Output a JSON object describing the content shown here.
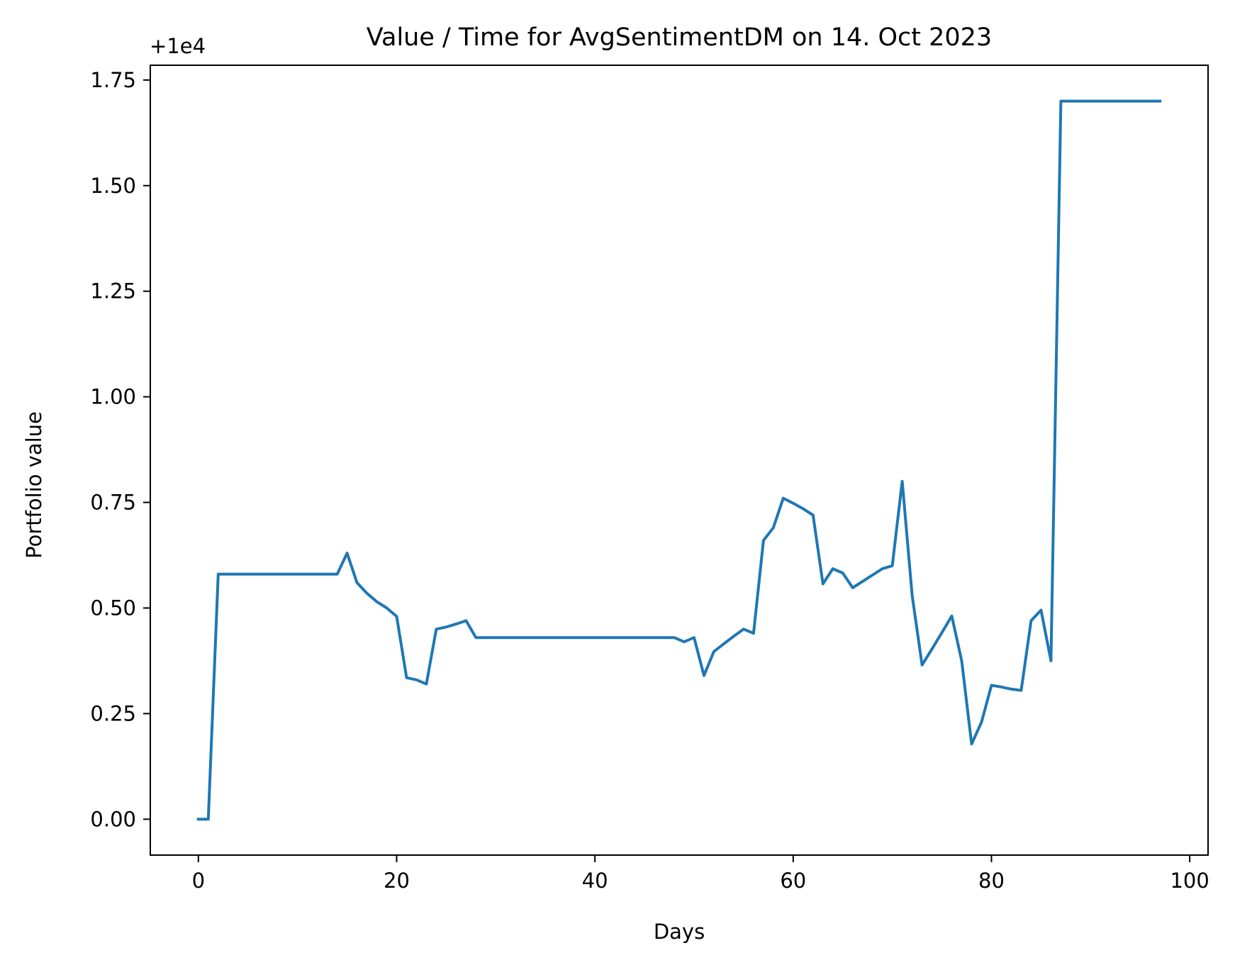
{
  "chart_data": {
    "type": "line",
    "title": "Value / Time for AvgSentimentDM on 14. Oct 2023",
    "xlabel": "Days",
    "ylabel": "Portfolio value",
    "y_offset_label": "+1e4",
    "xlim": [
      -4.85,
      101.85
    ],
    "ylim": [
      -0.085,
      1.785
    ],
    "xticks": [
      0,
      20,
      40,
      60,
      80,
      100
    ],
    "xtick_labels": [
      "0",
      "20",
      "40",
      "60",
      "80",
      "100"
    ],
    "yticks": [
      0.0,
      0.25,
      0.5,
      0.75,
      1.0,
      1.25,
      1.5,
      1.75
    ],
    "ytick_labels": [
      "0.00",
      "0.25",
      "0.50",
      "0.75",
      "1.00",
      "1.25",
      "1.50",
      "1.75"
    ],
    "grid": false,
    "line_color": "#1f77b4",
    "series": [
      {
        "x": [
          0,
          1,
          2,
          3,
          4,
          5,
          6,
          7,
          8,
          9,
          10,
          11,
          12,
          13,
          14,
          15,
          16,
          17,
          18,
          19,
          20,
          21,
          22,
          23,
          24,
          25,
          26,
          27,
          28,
          29,
          30,
          31,
          32,
          33,
          34,
          35,
          36,
          37,
          38,
          39,
          40,
          41,
          42,
          43,
          44,
          45,
          46,
          47,
          48,
          49,
          50,
          51,
          52,
          53,
          54,
          55,
          56,
          57,
          58,
          59,
          60,
          61,
          62,
          63,
          64,
          65,
          66,
          67,
          68,
          69,
          70,
          71,
          72,
          73,
          74,
          75,
          76,
          77,
          78,
          79,
          80,
          81,
          82,
          83,
          84,
          85,
          86,
          87,
          88,
          89,
          90,
          91,
          92,
          93,
          94,
          95,
          96,
          97
        ],
        "y": [
          0.0,
          0.0,
          0.58,
          0.58,
          0.58,
          0.58,
          0.58,
          0.58,
          0.58,
          0.58,
          0.58,
          0.58,
          0.58,
          0.58,
          0.58,
          0.63,
          0.56,
          0.535,
          0.515,
          0.5,
          0.48,
          0.335,
          0.33,
          0.32,
          0.45,
          0.455,
          0.462,
          0.47,
          0.43,
          0.43,
          0.43,
          0.43,
          0.43,
          0.43,
          0.43,
          0.43,
          0.43,
          0.43,
          0.43,
          0.43,
          0.43,
          0.43,
          0.43,
          0.43,
          0.43,
          0.43,
          0.43,
          0.43,
          0.43,
          0.42,
          0.43,
          0.34,
          0.397,
          0.415,
          0.433,
          0.45,
          0.44,
          0.66,
          0.69,
          0.76,
          0.748,
          0.735,
          0.72,
          0.557,
          0.593,
          0.583,
          0.548,
          0.563,
          0.578,
          0.593,
          0.6,
          0.8,
          0.53,
          0.365,
          0.403,
          0.442,
          0.481,
          0.375,
          0.178,
          0.23,
          0.317,
          0.313,
          0.308,
          0.305,
          0.47,
          0.495,
          0.375,
          1.7,
          1.7,
          1.7,
          1.7,
          1.7,
          1.7,
          1.7,
          1.7,
          1.7,
          1.7,
          1.7
        ]
      }
    ]
  }
}
